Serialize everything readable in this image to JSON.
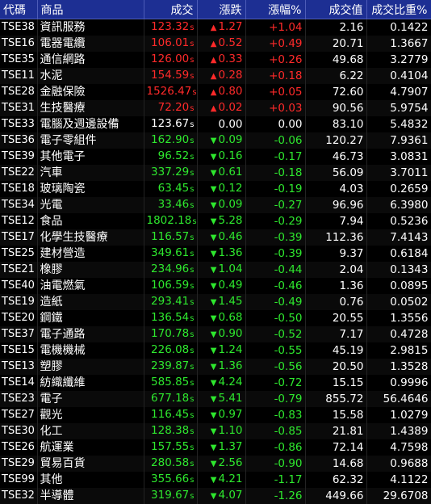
{
  "headers": [
    "代碼",
    "商品",
    "成交",
    "漲跌",
    "漲幅%",
    "成交值",
    "成交比重%"
  ],
  "suffix": "s",
  "rows": [
    {
      "code": "TSE38",
      "name": "資訊服務",
      "price": "123.32",
      "chg": "1.27",
      "pct": "+1.04",
      "value": "2.16",
      "ratio": "0.1422",
      "dir": "up"
    },
    {
      "code": "TSE16",
      "name": "電器電纜",
      "price": "106.01",
      "chg": "0.52",
      "pct": "+0.49",
      "value": "20.71",
      "ratio": "1.3667",
      "dir": "up"
    },
    {
      "code": "TSE35",
      "name": "通信網路",
      "price": "126.00",
      "chg": "0.33",
      "pct": "+0.26",
      "value": "49.68",
      "ratio": "3.2779",
      "dir": "up"
    },
    {
      "code": "TSE11",
      "name": "水泥",
      "price": "154.59",
      "chg": "0.28",
      "pct": "+0.18",
      "value": "6.22",
      "ratio": "0.4104",
      "dir": "up"
    },
    {
      "code": "TSE28",
      "name": "金融保險",
      "price": "1526.47",
      "chg": "0.80",
      "pct": "+0.05",
      "value": "72.60",
      "ratio": "4.7907",
      "dir": "up"
    },
    {
      "code": "TSE31",
      "name": "生技醫療",
      "price": "72.20",
      "chg": "0.02",
      "pct": "+0.03",
      "value": "90.56",
      "ratio": "5.9754",
      "dir": "up"
    },
    {
      "code": "TSE33",
      "name": "電腦及週邊設備",
      "price": "123.67",
      "chg": "0.00",
      "pct": "0.00",
      "value": "83.10",
      "ratio": "5.4832",
      "dir": "flat"
    },
    {
      "code": "TSE36",
      "name": "電子零組件",
      "price": "162.90",
      "chg": "0.09",
      "pct": "-0.06",
      "value": "120.27",
      "ratio": "7.9361",
      "dir": "down"
    },
    {
      "code": "TSE39",
      "name": "其他電子",
      "price": "96.52",
      "chg": "0.16",
      "pct": "-0.17",
      "value": "46.73",
      "ratio": "3.0831",
      "dir": "down"
    },
    {
      "code": "TSE22",
      "name": "汽車",
      "price": "337.29",
      "chg": "0.61",
      "pct": "-0.18",
      "value": "56.09",
      "ratio": "3.7011",
      "dir": "down"
    },
    {
      "code": "TSE18",
      "name": "玻璃陶瓷",
      "price": "63.45",
      "chg": "0.12",
      "pct": "-0.19",
      "value": "4.03",
      "ratio": "0.2659",
      "dir": "down"
    },
    {
      "code": "TSE34",
      "name": "光電",
      "price": "33.46",
      "chg": "0.09",
      "pct": "-0.27",
      "value": "96.96",
      "ratio": "6.3980",
      "dir": "down"
    },
    {
      "code": "TSE12",
      "name": "食品",
      "price": "1802.18",
      "chg": "5.28",
      "pct": "-0.29",
      "value": "7.94",
      "ratio": "0.5236",
      "dir": "down"
    },
    {
      "code": "TSE17",
      "name": "化學生技醫療",
      "price": "116.57",
      "chg": "0.46",
      "pct": "-0.39",
      "value": "112.36",
      "ratio": "7.4143",
      "dir": "down"
    },
    {
      "code": "TSE25",
      "name": "建材營造",
      "price": "349.61",
      "chg": "1.36",
      "pct": "-0.39",
      "value": "9.37",
      "ratio": "0.6184",
      "dir": "down"
    },
    {
      "code": "TSE21",
      "name": "橡膠",
      "price": "234.96",
      "chg": "1.04",
      "pct": "-0.44",
      "value": "2.04",
      "ratio": "0.1343",
      "dir": "down"
    },
    {
      "code": "TSE40",
      "name": "油電燃氣",
      "price": "106.59",
      "chg": "0.49",
      "pct": "-0.46",
      "value": "1.36",
      "ratio": "0.0895",
      "dir": "down"
    },
    {
      "code": "TSE19",
      "name": "造紙",
      "price": "293.41",
      "chg": "1.45",
      "pct": "-0.49",
      "value": "0.76",
      "ratio": "0.0502",
      "dir": "down"
    },
    {
      "code": "TSE20",
      "name": "鋼鐵",
      "price": "136.54",
      "chg": "0.68",
      "pct": "-0.50",
      "value": "20.55",
      "ratio": "1.3556",
      "dir": "down"
    },
    {
      "code": "TSE37",
      "name": "電子通路",
      "price": "170.78",
      "chg": "0.90",
      "pct": "-0.52",
      "value": "7.17",
      "ratio": "0.4728",
      "dir": "down"
    },
    {
      "code": "TSE15",
      "name": "電機機械",
      "price": "226.08",
      "chg": "1.24",
      "pct": "-0.55",
      "value": "45.19",
      "ratio": "2.9815",
      "dir": "down"
    },
    {
      "code": "TSE13",
      "name": "塑膠",
      "price": "239.87",
      "chg": "1.36",
      "pct": "-0.56",
      "value": "20.50",
      "ratio": "1.3528",
      "dir": "down"
    },
    {
      "code": "TSE14",
      "name": "紡織纖維",
      "price": "585.85",
      "chg": "4.24",
      "pct": "-0.72",
      "value": "15.15",
      "ratio": "0.9996",
      "dir": "down"
    },
    {
      "code": "TSE23",
      "name": "電子",
      "price": "677.18",
      "chg": "5.41",
      "pct": "-0.79",
      "value": "855.72",
      "ratio": "56.4646",
      "dir": "down"
    },
    {
      "code": "TSE27",
      "name": "觀光",
      "price": "116.45",
      "chg": "0.97",
      "pct": "-0.83",
      "value": "15.58",
      "ratio": "1.0279",
      "dir": "down"
    },
    {
      "code": "TSE30",
      "name": "化工",
      "price": "128.38",
      "chg": "1.10",
      "pct": "-0.85",
      "value": "21.81",
      "ratio": "1.4389",
      "dir": "down"
    },
    {
      "code": "TSE26",
      "name": "航運業",
      "price": "157.55",
      "chg": "1.37",
      "pct": "-0.86",
      "value": "72.14",
      "ratio": "4.7598",
      "dir": "down"
    },
    {
      "code": "TSE29",
      "name": "貿易百貨",
      "price": "280.58",
      "chg": "2.56",
      "pct": "-0.90",
      "value": "14.68",
      "ratio": "0.9688",
      "dir": "down"
    },
    {
      "code": "TSE99",
      "name": "其他",
      "price": "355.66",
      "chg": "4.21",
      "pct": "-1.17",
      "value": "62.32",
      "ratio": "4.1122",
      "dir": "down"
    },
    {
      "code": "TSE32",
      "name": "半導體",
      "price": "319.67",
      "chg": "4.07",
      "pct": "-1.26",
      "value": "449.66",
      "ratio": "29.6708",
      "dir": "down"
    }
  ],
  "colors": {
    "up": "#ff2a2a",
    "down": "#2ee82e",
    "flat": "#ffffff",
    "header_bg": "#1d2f93"
  }
}
